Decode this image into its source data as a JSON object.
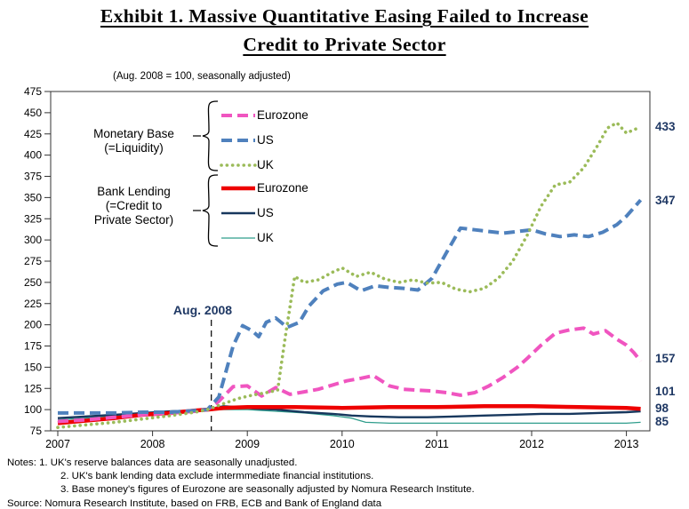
{
  "title": {
    "line1": "Exhibit 1. Massive Quantitative Easing Failed to Increase",
    "line2": "Credit to Private Sector"
  },
  "subtitle": "(Aug. 2008 = 100, seasonally adjusted)",
  "legend": {
    "monetary_base": {
      "label_line1": "Monetary Base",
      "label_line2": "(=Liquidity)"
    },
    "bank_lending": {
      "label_line1": "Bank Lending",
      "label_line2": "(=Credit to",
      "label_line3": "Private Sector)"
    }
  },
  "annotation": {
    "label": "Aug. 2008",
    "x": 2008.62
  },
  "colors": {
    "eurozone_mb": "#f055c0",
    "us_mb": "#4f81bd",
    "uk_mb": "#9bbb59",
    "eurozone_lending": "#ee0000",
    "us_lending": "#17375d",
    "uk_lending": "#2f9d8c",
    "end_label_text": "#1f3864",
    "axis": "#333333"
  },
  "chart_data": {
    "type": "line",
    "title": "Exhibit 1. Massive Quantitative Easing Failed to Increase Credit to Private Sector",
    "xlabel": "",
    "ylabel": "(Aug. 2008 = 100, seasonally adjusted)",
    "xlim": [
      2006.93,
      2013.25
    ],
    "ylim": [
      75,
      475
    ],
    "y_ticks": [
      75,
      100,
      125,
      150,
      175,
      200,
      225,
      250,
      275,
      300,
      325,
      350,
      375,
      400,
      425,
      450,
      475
    ],
    "x_ticks": [
      "2007",
      "2008",
      "2009",
      "2010",
      "2011",
      "2012",
      "2013"
    ],
    "grid": false,
    "legend_position": "upper-left-inside",
    "series": [
      {
        "id": "uk_lending",
        "label": "UK",
        "group": "Bank Lending (=Credit to Private Sector)",
        "color": "#2f9d8c",
        "line_style": "solid-thin",
        "end_label": "85",
        "points": [
          [
            2007,
            88
          ],
          [
            2007.3,
            90
          ],
          [
            2007.6,
            93
          ],
          [
            2007.9,
            95
          ],
          [
            2008.2,
            97
          ],
          [
            2008.45,
            99
          ],
          [
            2008.58,
            100
          ],
          [
            2008.8,
            100
          ],
          [
            2009,
            100
          ],
          [
            2009.3,
            98
          ],
          [
            2009.6,
            96
          ],
          [
            2009.9,
            93
          ],
          [
            2010.1,
            90
          ],
          [
            2010.25,
            85
          ],
          [
            2010.5,
            84
          ],
          [
            2011,
            84
          ],
          [
            2011.5,
            84
          ],
          [
            2012,
            84
          ],
          [
            2012.5,
            84
          ],
          [
            2013,
            84
          ],
          [
            2013.15,
            85
          ]
        ]
      },
      {
        "id": "us_lending",
        "label": "US",
        "group": "Bank Lending (=Credit to Private Sector)",
        "color": "#17375d",
        "line_style": "solid-medium",
        "end_label": "98",
        "points": [
          [
            2007,
            90
          ],
          [
            2007.3,
            92
          ],
          [
            2007.6,
            94
          ],
          [
            2007.9,
            96
          ],
          [
            2008.2,
            98
          ],
          [
            2008.45,
            99
          ],
          [
            2008.58,
            100
          ],
          [
            2008.75,
            104
          ],
          [
            2008.9,
            103
          ],
          [
            2009.1,
            101
          ],
          [
            2009.3,
            100
          ],
          [
            2009.6,
            97
          ],
          [
            2009.9,
            95
          ],
          [
            2010.1,
            93
          ],
          [
            2010.3,
            92
          ],
          [
            2010.6,
            91
          ],
          [
            2010.9,
            91
          ],
          [
            2011.2,
            92
          ],
          [
            2011.5,
            93
          ],
          [
            2011.8,
            94
          ],
          [
            2012.1,
            95
          ],
          [
            2012.4,
            95
          ],
          [
            2012.7,
            96
          ],
          [
            2013,
            97
          ],
          [
            2013.15,
            98
          ]
        ]
      },
      {
        "id": "eurozone_lending",
        "label": "Eurozone",
        "group": "Bank Lending (=Credit to Private Sector)",
        "color": "#ee0000",
        "line_style": "solid-thick",
        "end_label": "101",
        "points": [
          [
            2007,
            84
          ],
          [
            2007.3,
            87
          ],
          [
            2007.6,
            90
          ],
          [
            2007.9,
            94
          ],
          [
            2008.2,
            96
          ],
          [
            2008.45,
            99
          ],
          [
            2008.58,
            100
          ],
          [
            2008.75,
            102
          ],
          [
            2009,
            103
          ],
          [
            2009.5,
            103
          ],
          [
            2010,
            102
          ],
          [
            2010.5,
            103
          ],
          [
            2011,
            103
          ],
          [
            2011.5,
            104
          ],
          [
            2012,
            104
          ],
          [
            2012.5,
            103
          ],
          [
            2013,
            102
          ],
          [
            2013.15,
            101
          ]
        ]
      },
      {
        "id": "eurozone_mb",
        "label": "Eurozone",
        "group": "Monetary Base (=Liquidity)",
        "color": "#f055c0",
        "line_style": "dashed",
        "end_label": "157",
        "points": [
          [
            2007,
            86
          ],
          [
            2007.3,
            88
          ],
          [
            2007.6,
            91
          ],
          [
            2007.9,
            94
          ],
          [
            2008.2,
            96
          ],
          [
            2008.45,
            98
          ],
          [
            2008.58,
            100
          ],
          [
            2008.7,
            110
          ],
          [
            2008.85,
            127
          ],
          [
            2009,
            128
          ],
          [
            2009.15,
            116
          ],
          [
            2009.3,
            126
          ],
          [
            2009.45,
            118
          ],
          [
            2009.6,
            121
          ],
          [
            2009.75,
            124
          ],
          [
            2009.9,
            129
          ],
          [
            2010.05,
            134
          ],
          [
            2010.2,
            137
          ],
          [
            2010.33,
            140
          ],
          [
            2010.5,
            128
          ],
          [
            2010.65,
            124
          ],
          [
            2010.8,
            123
          ],
          [
            2010.95,
            122
          ],
          [
            2011.1,
            120
          ],
          [
            2011.25,
            117
          ],
          [
            2011.4,
            120
          ],
          [
            2011.55,
            128
          ],
          [
            2011.7,
            138
          ],
          [
            2011.85,
            150
          ],
          [
            2011.95,
            160
          ],
          [
            2012.1,
            176
          ],
          [
            2012.25,
            190
          ],
          [
            2012.4,
            194
          ],
          [
            2012.55,
            196
          ],
          [
            2012.65,
            189
          ],
          [
            2012.78,
            193
          ],
          [
            2012.9,
            183
          ],
          [
            2013,
            176
          ],
          [
            2013.08,
            167
          ],
          [
            2013.15,
            157
          ]
        ]
      },
      {
        "id": "us_mb",
        "label": "US",
        "group": "Monetary Base (=Liquidity)",
        "color": "#4f81bd",
        "line_style": "dashed",
        "end_label": "347",
        "points": [
          [
            2007,
            96
          ],
          [
            2007.3,
            96
          ],
          [
            2007.6,
            96
          ],
          [
            2007.9,
            97
          ],
          [
            2008.2,
            97
          ],
          [
            2008.45,
            99
          ],
          [
            2008.58,
            100
          ],
          [
            2008.7,
            115
          ],
          [
            2008.85,
            175
          ],
          [
            2008.95,
            199
          ],
          [
            2009.05,
            193
          ],
          [
            2009.12,
            186
          ],
          [
            2009.2,
            203
          ],
          [
            2009.3,
            208
          ],
          [
            2009.42,
            197
          ],
          [
            2009.55,
            203
          ],
          [
            2009.65,
            222
          ],
          [
            2009.8,
            240
          ],
          [
            2009.95,
            248
          ],
          [
            2010.05,
            250
          ],
          [
            2010.2,
            240
          ],
          [
            2010.35,
            246
          ],
          [
            2010.5,
            244
          ],
          [
            2010.65,
            243
          ],
          [
            2010.8,
            241
          ],
          [
            2010.95,
            255
          ],
          [
            2011.1,
            285
          ],
          [
            2011.25,
            314
          ],
          [
            2011.4,
            312
          ],
          [
            2011.55,
            310
          ],
          [
            2011.7,
            308
          ],
          [
            2011.85,
            310
          ],
          [
            2012,
            312
          ],
          [
            2012.15,
            307
          ],
          [
            2012.3,
            304
          ],
          [
            2012.45,
            306
          ],
          [
            2012.6,
            304
          ],
          [
            2012.75,
            309
          ],
          [
            2012.9,
            318
          ],
          [
            2013,
            328
          ],
          [
            2013.08,
            338
          ],
          [
            2013.15,
            347
          ]
        ]
      },
      {
        "id": "uk_mb",
        "label": "UK",
        "group": "Monetary Base (=Liquidity)",
        "color": "#9bbb59",
        "line_style": "dotted",
        "end_label": "433",
        "points": [
          [
            2007,
            79
          ],
          [
            2007.3,
            82
          ],
          [
            2007.6,
            85
          ],
          [
            2007.9,
            89
          ],
          [
            2008.2,
            93
          ],
          [
            2008.45,
            97
          ],
          [
            2008.58,
            100
          ],
          [
            2008.75,
            107
          ],
          [
            2008.9,
            113
          ],
          [
            2009.05,
            117
          ],
          [
            2009.2,
            120
          ],
          [
            2009.32,
            123
          ],
          [
            2009.4,
            185
          ],
          [
            2009.5,
            257
          ],
          [
            2009.6,
            250
          ],
          [
            2009.75,
            253
          ],
          [
            2009.9,
            262
          ],
          [
            2010,
            267
          ],
          [
            2010.15,
            257
          ],
          [
            2010.3,
            262
          ],
          [
            2010.45,
            254
          ],
          [
            2010.6,
            250
          ],
          [
            2010.75,
            253
          ],
          [
            2010.9,
            249
          ],
          [
            2011.05,
            250
          ],
          [
            2011.2,
            242
          ],
          [
            2011.35,
            239
          ],
          [
            2011.5,
            243
          ],
          [
            2011.65,
            255
          ],
          [
            2011.8,
            275
          ],
          [
            2011.95,
            305
          ],
          [
            2012.1,
            340
          ],
          [
            2012.25,
            365
          ],
          [
            2012.4,
            368
          ],
          [
            2012.55,
            385
          ],
          [
            2012.7,
            412
          ],
          [
            2012.8,
            432
          ],
          [
            2012.9,
            438
          ],
          [
            2013,
            426
          ],
          [
            2013.08,
            430
          ],
          [
            2013.15,
            433
          ]
        ]
      }
    ]
  },
  "notes": [
    "Notes: 1. UK's reserve balances data are seasonally unadjusted.",
    "2. UK's bank lending data exclude intermmediate  financial institutions.",
    "3. Base money's figures of Eurozone are seasonally adjusted by Nomura Research  Institute."
  ],
  "source": "Source: Nomura Research  Institute, based on FRB, ECB and Bank of England data"
}
